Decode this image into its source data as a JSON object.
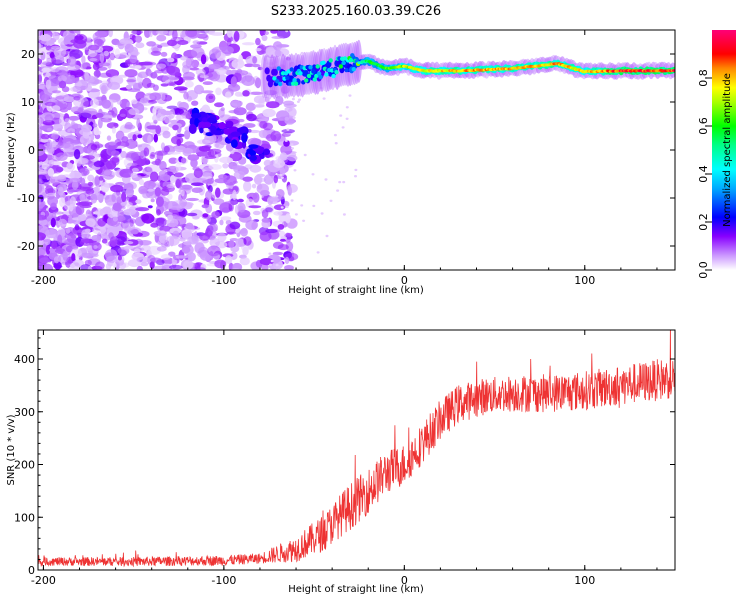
{
  "chart_data": [
    {
      "type": "heatmap",
      "title": "S233.2025.160.03.39.C26",
      "xlabel": "Height of straight line (km)",
      "ylabel": "Frequency (Hz)",
      "xlim": [
        -203,
        150
      ],
      "ylim": [
        -25,
        25
      ],
      "xticks": [
        -200,
        -100,
        0,
        100
      ],
      "yticks": [
        -20,
        -10,
        0,
        10,
        20
      ],
      "colorbar": {
        "label": "Normalized spectral amplitude",
        "range": [
          0,
          1
        ],
        "ticks": [
          "0.0",
          "0.2",
          "0.4",
          "0.6",
          "0.8"
        ],
        "tick_values": [
          0,
          0.2,
          0.4,
          0.6,
          0.8
        ],
        "colors": [
          "#ffffff",
          "#8800ff",
          "#0000ff",
          "#00ffff",
          "#00ff00",
          "#ffff00",
          "#ff0000",
          "#ff0088"
        ]
      },
      "features": {
        "noise_region_x": [
          -203,
          -70
        ],
        "signal_ridge": [
          {
            "x": -74,
            "freq": 15.2,
            "amp": 0.3
          },
          {
            "x": -60,
            "freq": 15.5,
            "amp": 0.4
          },
          {
            "x": -45,
            "freq": 16.5,
            "amp": 0.35
          },
          {
            "x": -30,
            "freq": 18.0,
            "amp": 0.45
          },
          {
            "x": -20,
            "freq": 18.5,
            "amp": 0.6
          },
          {
            "x": -10,
            "freq": 17.0,
            "amp": 0.65
          },
          {
            "x": 0,
            "freq": 17.5,
            "amp": 0.75
          },
          {
            "x": 10,
            "freq": 16.5,
            "amp": 0.8
          },
          {
            "x": 30,
            "freq": 16.5,
            "amp": 0.85
          },
          {
            "x": 60,
            "freq": 17.0,
            "amp": 0.85
          },
          {
            "x": 85,
            "freq": 18.0,
            "amp": 0.85
          },
          {
            "x": 100,
            "freq": 16.3,
            "amp": 0.8
          },
          {
            "x": 120,
            "freq": 16.5,
            "amp": 0.95
          },
          {
            "x": 150,
            "freq": 16.5,
            "amp": 0.95
          }
        ],
        "descending_blob": [
          {
            "x": -115,
            "freq": 6.0
          },
          {
            "x": -100,
            "freq": 4.5
          },
          {
            "x": -88,
            "freq": 2.0
          },
          {
            "x": -80,
            "freq": -1.5
          }
        ]
      }
    },
    {
      "type": "line",
      "xlabel": "Height of straight line (km)",
      "ylabel": "SNR (10 * v/v)",
      "xlim": [
        -203,
        150
      ],
      "ylim": [
        0,
        455
      ],
      "xticks": [
        -200,
        -100,
        0,
        100
      ],
      "yticks": [
        0,
        100,
        200,
        300,
        400
      ],
      "color": "#ee3333",
      "trend": [
        {
          "x": -200,
          "y": 16
        },
        {
          "x": -150,
          "y": 16
        },
        {
          "x": -100,
          "y": 18
        },
        {
          "x": -80,
          "y": 22
        },
        {
          "x": -60,
          "y": 40
        },
        {
          "x": -45,
          "y": 70
        },
        {
          "x": -35,
          "y": 105
        },
        {
          "x": -20,
          "y": 150
        },
        {
          "x": -10,
          "y": 185
        },
        {
          "x": 0,
          "y": 200
        },
        {
          "x": 10,
          "y": 240
        },
        {
          "x": 20,
          "y": 285
        },
        {
          "x": 30,
          "y": 315
        },
        {
          "x": 45,
          "y": 330
        },
        {
          "x": 60,
          "y": 335
        },
        {
          "x": 80,
          "y": 335
        },
        {
          "x": 100,
          "y": 340
        },
        {
          "x": 120,
          "y": 350
        },
        {
          "x": 150,
          "y": 365
        }
      ],
      "noise": [
        {
          "x": -200,
          "amp": 8
        },
        {
          "x": -80,
          "amp": 10
        },
        {
          "x": -60,
          "amp": 25
        },
        {
          "x": -30,
          "amp": 45
        },
        {
          "x": 0,
          "amp": 40
        },
        {
          "x": 50,
          "amp": 35
        },
        {
          "x": 150,
          "amp": 40
        }
      ]
    }
  ]
}
